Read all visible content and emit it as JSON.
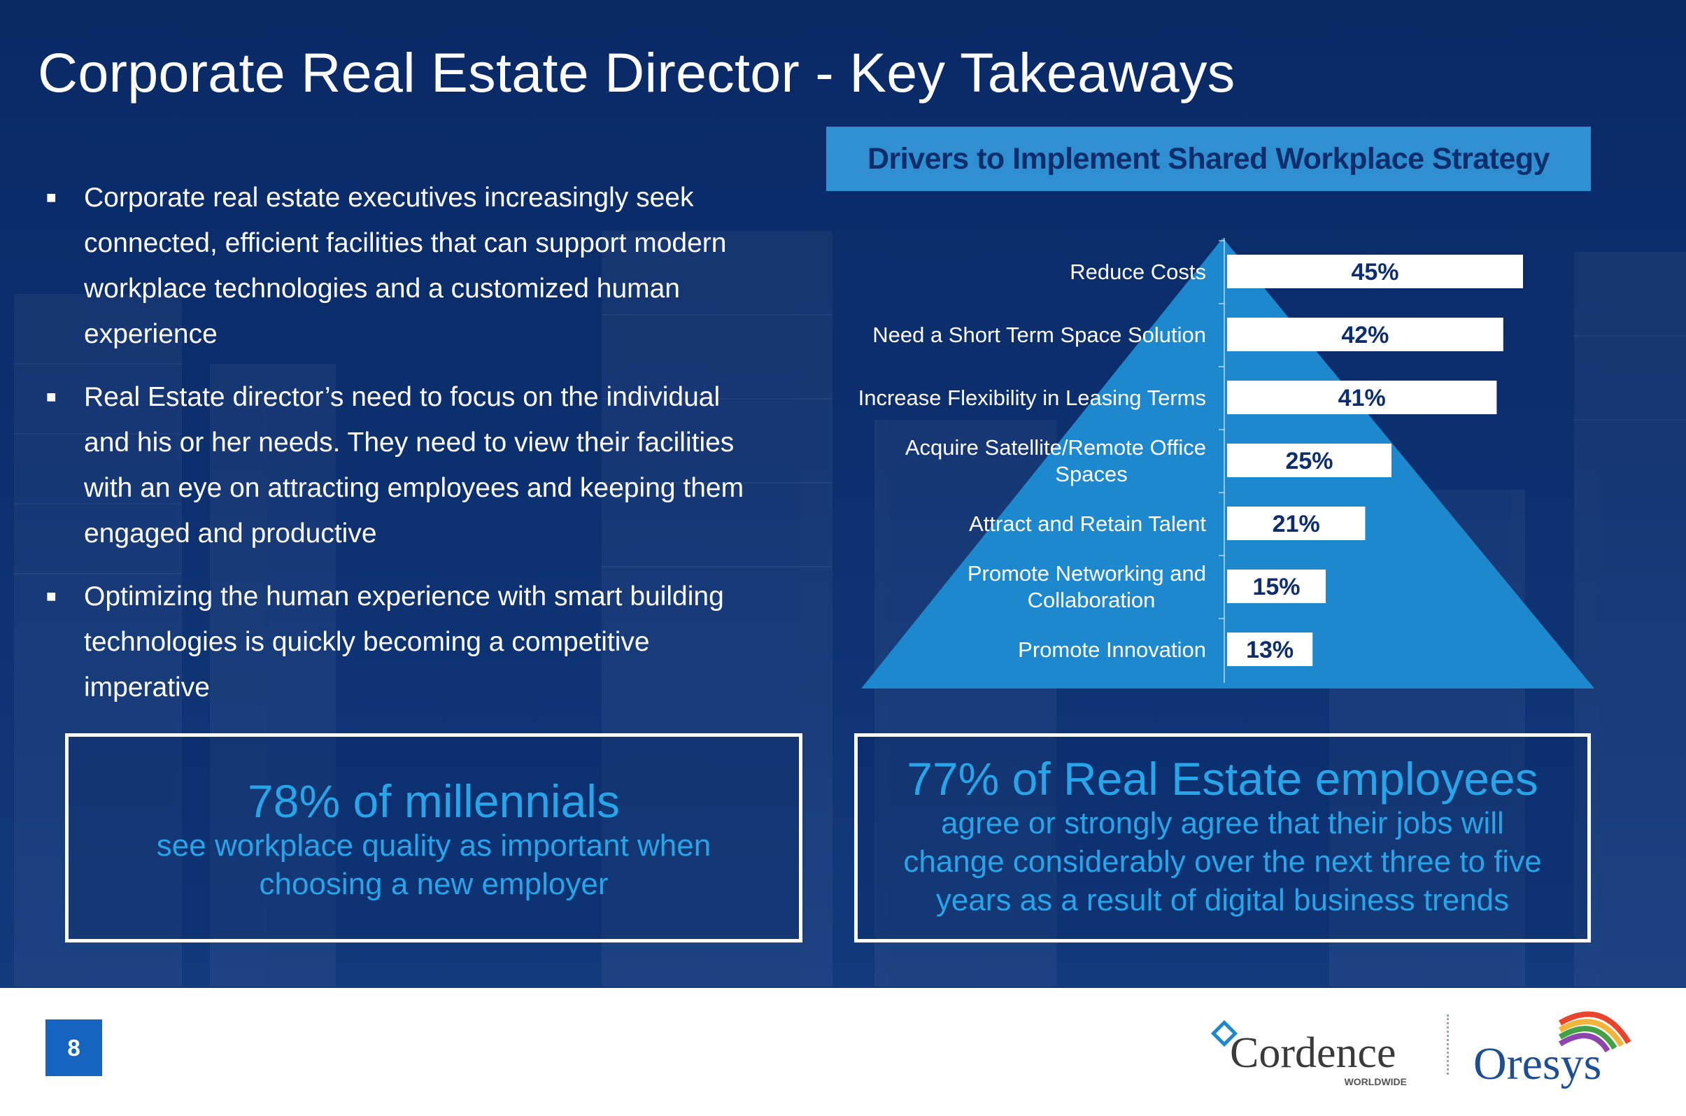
{
  "slide": {
    "title": "Corporate Real Estate Director -  Key Takeaways",
    "page_number": "8"
  },
  "bullets": [
    "Corporate real estate executives increasingly seek connected, efficient facilities that can support modern workplace technologies and a customized human experience",
    "Real Estate director’s need to focus on the individual and his or her needs. They need to view their facilities with an eye on attracting employees and keeping them engaged and productive",
    "Optimizing the human experience with smart building technologies is quickly becoming a competitive imperative"
  ],
  "stats": {
    "millennials": {
      "headline": "78% of millennials",
      "line1": "see workplace quality as important when",
      "line2": "choosing a new employer"
    },
    "employees": {
      "headline": "77% of Real Estate employees",
      "line1": "agree or strongly agree that their jobs will",
      "line2": "change considerably over the next three to five",
      "line3": "years as a result of digital business trends"
    }
  },
  "logos": {
    "cordence": "Cordence",
    "cordence_sub": "WORLDWIDE",
    "oresys": "Oresys"
  },
  "colors": {
    "background": "#0c2f6e",
    "title_bar": "#2f8fd0",
    "pyramid": "#1e88cf",
    "accent_text": "#28a4e8",
    "bar_fill": "#ffffff",
    "bar_label": "#0d2d6c",
    "page_badge": "#1565c0"
  },
  "chart_data": {
    "type": "bar",
    "orientation": "horizontal",
    "title": "Drivers to Implement Shared Workplace Strategy",
    "categories": [
      "Reduce Costs",
      "Need a Short Term Space Solution",
      "Increase Flexibility in Leasing Terms",
      "Acquire Satellite/Remote Office Spaces",
      "Attract and Retain Talent",
      "Promote Networking and Collaboration",
      "Promote Innovation"
    ],
    "category_lines": [
      [
        "Reduce Costs"
      ],
      [
        "Need a Short Term Space Solution"
      ],
      [
        "Increase Flexibility in Leasing Terms"
      ],
      [
        "Acquire Satellite/Remote Office",
        "Spaces"
      ],
      [
        "Attract and Retain Talent"
      ],
      [
        "Promote Networking and",
        "Collaboration"
      ],
      [
        "Promote Innovation"
      ]
    ],
    "values": [
      45,
      42,
      41,
      25,
      21,
      15,
      13
    ],
    "value_labels": [
      "45%",
      "42%",
      "41%",
      "25%",
      "21%",
      "15%",
      "13%"
    ],
    "unit": "%",
    "xlim": [
      0,
      50
    ],
    "grid": false,
    "legend": "none"
  }
}
